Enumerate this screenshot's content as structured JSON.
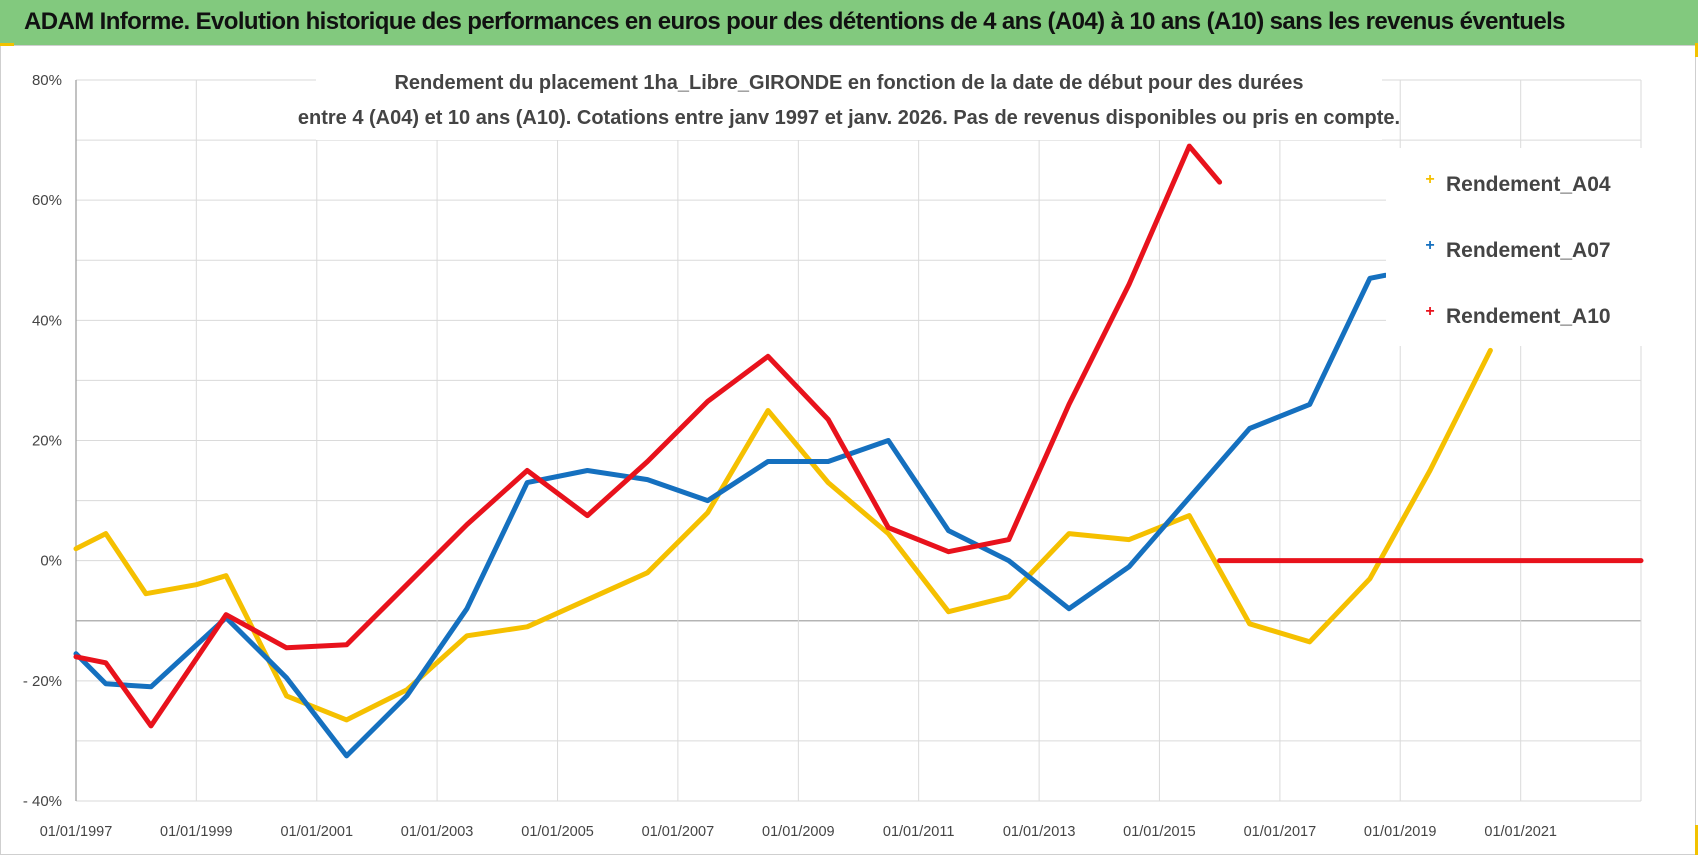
{
  "banner": {
    "title": "ADAM Informe. Evolution historique des performances en euros pour des détentions de 4 ans (A04) à 10 ans (A10) sans les revenus éventuels"
  },
  "colors": {
    "banner_bg": "#82c97e",
    "A04": "#f5c000",
    "A07": "#1570bf",
    "A10": "#e8121c"
  },
  "chart_data": {
    "type": "line",
    "title_lines": [
      "Rendement du placement 1ha_Libre_GIRONDE en fonction de la date de début pour des durées",
      "entre 4 (A04) et 10 ans (A10).  Cotations entre janv 1997 et janv. 2026. Pas de revenus disponibles ou pris en compte."
    ],
    "x_ticks": [
      "01/01/1997",
      "01/01/1999",
      "01/01/2001",
      "01/01/2003",
      "01/01/2005",
      "01/01/2007",
      "01/01/2009",
      "01/01/2011",
      "01/01/2013",
      "01/01/2015",
      "01/01/2017",
      "01/01/2019",
      "01/01/2021"
    ],
    "y_ticks": [
      "80%",
      "60%",
      "40%",
      "20%",
      "0%",
      "- 20%",
      "- 40%"
    ],
    "ylim": [
      -40,
      80
    ],
    "xlim": [
      "01/01/1997",
      "01/01/2023"
    ],
    "legend_position": "top-right",
    "grid": true,
    "series": [
      {
        "name": "Rendement_A04",
        "color_key": "A04",
        "points": [
          [
            "01/01/1997",
            2
          ],
          [
            "01/07/1997",
            4.5
          ],
          [
            "01/03/1998",
            -5.5
          ],
          [
            "01/01/1999",
            -4
          ],
          [
            "01/07/1999",
            -2.5
          ],
          [
            "01/07/2000",
            -22.5
          ],
          [
            "01/07/2001",
            -26.5
          ],
          [
            "01/07/2002",
            -21.5
          ],
          [
            "01/07/2003",
            -12.5
          ],
          [
            "01/07/2004",
            -11
          ],
          [
            "01/07/2005",
            -6.5
          ],
          [
            "01/07/2006",
            -2
          ],
          [
            "01/07/2007",
            8
          ],
          [
            "01/07/2008",
            25
          ],
          [
            "01/07/2009",
            13
          ],
          [
            "01/07/2010",
            4.5
          ],
          [
            "01/07/2011",
            -8.5
          ],
          [
            "01/07/2012",
            -6
          ],
          [
            "01/07/2013",
            4.5
          ],
          [
            "01/07/2014",
            3.5
          ],
          [
            "01/07/2015",
            7.5
          ],
          [
            "01/07/2016",
            -10.5
          ],
          [
            "01/07/2017",
            -13.5
          ],
          [
            "01/07/2018",
            -3
          ],
          [
            "01/07/2019",
            15
          ],
          [
            "01/07/2020",
            35
          ]
        ]
      },
      {
        "name": "Rendement_A07",
        "color_key": "A07",
        "points": [
          [
            "01/01/1997",
            -15.5
          ],
          [
            "01/07/1997",
            -20.5
          ],
          [
            "01/04/1998",
            -21
          ],
          [
            "01/07/1999",
            -9.5
          ],
          [
            "01/07/2000",
            -19.5
          ],
          [
            "01/07/2001",
            -32.5
          ],
          [
            "01/07/2002",
            -22.5
          ],
          [
            "01/07/2003",
            -8
          ],
          [
            "01/07/2004",
            13
          ],
          [
            "01/07/2005",
            15
          ],
          [
            "01/07/2006",
            13.5
          ],
          [
            "01/07/2007",
            10
          ],
          [
            "01/07/2008",
            16.5
          ],
          [
            "01/07/2009",
            16.5
          ],
          [
            "01/07/2010",
            20
          ],
          [
            "01/07/2011",
            5
          ],
          [
            "01/07/2012",
            0
          ],
          [
            "01/07/2013",
            -8
          ],
          [
            "01/07/2014",
            -1
          ],
          [
            "01/07/2015",
            10.5
          ],
          [
            "01/07/2016",
            22
          ],
          [
            "01/07/2017",
            26
          ],
          [
            "01/07/2018",
            47
          ],
          [
            "01/10/2018",
            47.5
          ]
        ]
      },
      {
        "name": "Rendement_A10",
        "color_key": "A10",
        "points": [
          [
            "01/01/1997",
            -16
          ],
          [
            "01/07/1997",
            -17
          ],
          [
            "01/04/1998",
            -27.5
          ],
          [
            "01/07/1999",
            -9
          ],
          [
            "01/07/2000",
            -14.5
          ],
          [
            "01/07/2001",
            -14
          ],
          [
            "01/07/2002",
            -4
          ],
          [
            "01/07/2003",
            6
          ],
          [
            "01/07/2004",
            15
          ],
          [
            "01/07/2005",
            7.5
          ],
          [
            "01/07/2006",
            16.5
          ],
          [
            "01/07/2007",
            26.5
          ],
          [
            "01/07/2008",
            34
          ],
          [
            "01/07/2009",
            23.5
          ],
          [
            "01/07/2010",
            5.5
          ],
          [
            "01/07/2011",
            1.5
          ],
          [
            "01/07/2012",
            3.5
          ],
          [
            "01/07/2013",
            26
          ],
          [
            "01/07/2014",
            46
          ],
          [
            "01/07/2015",
            69
          ],
          [
            "01/01/2016",
            63
          ]
        ],
        "flat_segment": {
          "from": "01/01/2016",
          "to": "01/01/2023",
          "value": 0
        }
      }
    ]
  }
}
